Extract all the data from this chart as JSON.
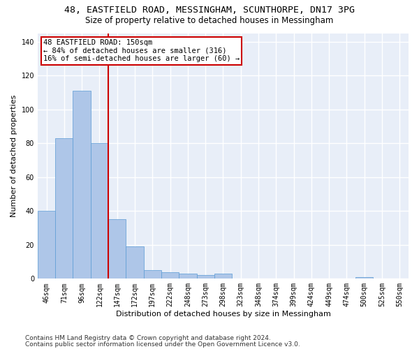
{
  "title_line1": "48, EASTFIELD ROAD, MESSINGHAM, SCUNTHORPE, DN17 3PG",
  "title_line2": "Size of property relative to detached houses in Messingham",
  "xlabel": "Distribution of detached houses by size in Messingham",
  "ylabel": "Number of detached properties",
  "categories": [
    "46sqm",
    "71sqm",
    "96sqm",
    "122sqm",
    "147sqm",
    "172sqm",
    "197sqm",
    "222sqm",
    "248sqm",
    "273sqm",
    "298sqm",
    "323sqm",
    "348sqm",
    "374sqm",
    "399sqm",
    "424sqm",
    "449sqm",
    "474sqm",
    "500sqm",
    "525sqm",
    "550sqm"
  ],
  "values": [
    40,
    83,
    111,
    80,
    35,
    19,
    5,
    4,
    3,
    2,
    3,
    0,
    0,
    0,
    0,
    0,
    0,
    0,
    1,
    0,
    0
  ],
  "bar_color": "#aec6e8",
  "bar_edge_color": "#5b9bd5",
  "highlight_color": "#cc0000",
  "annotation_box_text": "48 EASTFIELD ROAD: 150sqm\n← 84% of detached houses are smaller (316)\n16% of semi-detached houses are larger (60) →",
  "ylim": [
    0,
    145
  ],
  "yticks": [
    0,
    20,
    40,
    60,
    80,
    100,
    120,
    140
  ],
  "background_color": "#e8eef8",
  "grid_color": "#ffffff",
  "footer_line1": "Contains HM Land Registry data © Crown copyright and database right 2024.",
  "footer_line2": "Contains public sector information licensed under the Open Government Licence v3.0.",
  "title_fontsize": 9.5,
  "subtitle_fontsize": 8.5,
  "axis_label_fontsize": 8,
  "tick_fontsize": 7,
  "annotation_fontsize": 7.5,
  "footer_fontsize": 6.5
}
